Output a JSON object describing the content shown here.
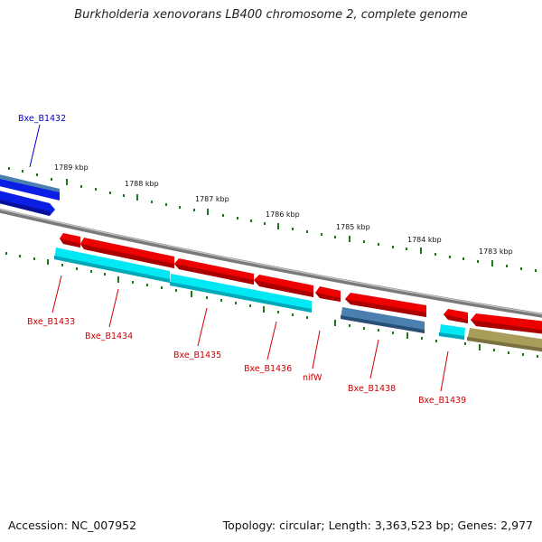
{
  "title": "Burkholderia xenovorans LB400 chromosome 2, complete genome",
  "footer": {
    "accession": "Accession: NC_007952",
    "summary": "Topology: circular; Length: 3,363,523 bp; Genes: 2,977"
  },
  "ruler_labels": [
    "1789 kbp",
    "1788 kbp",
    "1787 kbp",
    "1786 kbp",
    "1785 kbp",
    "1784 kbp",
    "1783 kbp"
  ],
  "gene_labels": {
    "b1432": "Bxe_B1432",
    "b1433": "Bxe_B1433",
    "b1434": "Bxe_B1434",
    "b1435": "Bxe_B1435",
    "b1436": "Bxe_B1436",
    "nifw": "nifW",
    "b1438": "Bxe_B1438",
    "b1439": "Bxe_B1439"
  },
  "colors": {
    "cds": "#ee0000",
    "cyan": "#00e0f0",
    "blue": "#0a1ee6",
    "steel": "#3f6f9f",
    "olive": "#a89e5a",
    "backbone": "#808080",
    "tick": "#1a7a1a",
    "label_red": "#cc0000",
    "label_blue": "#0000cc"
  }
}
